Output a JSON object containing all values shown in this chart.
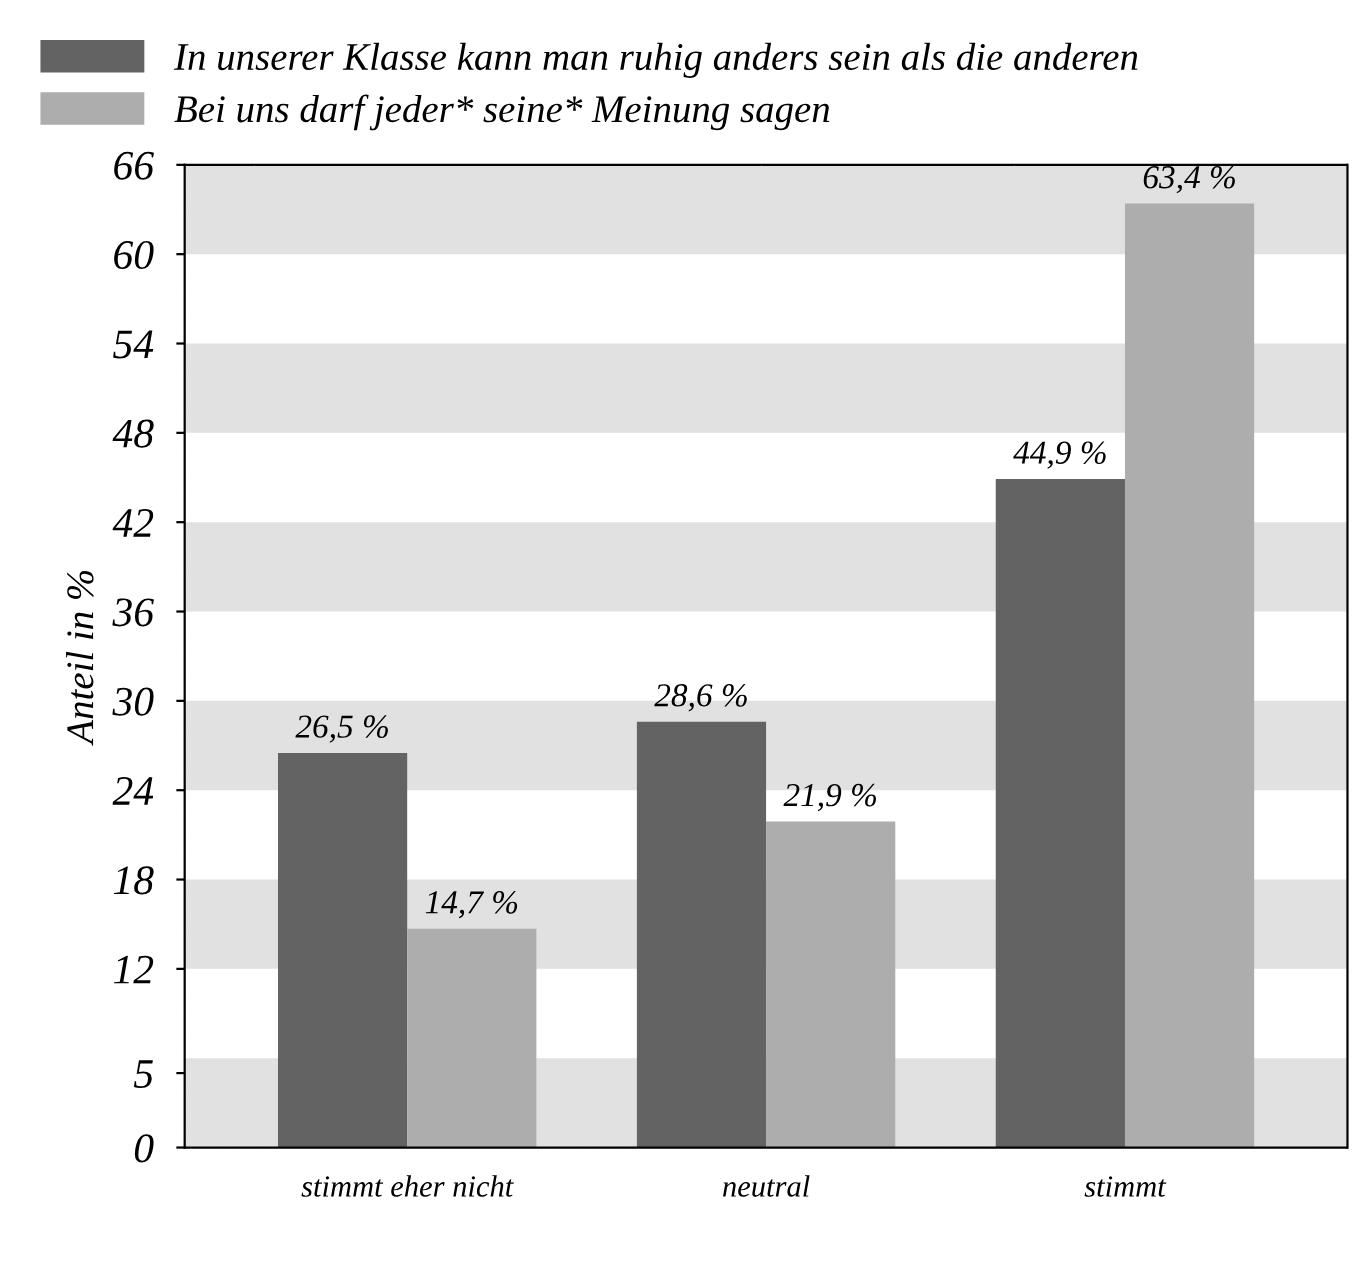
{
  "chart_data": {
    "type": "bar",
    "ylabel": "Anteil in %",
    "categories": [
      "stimmt eher nicht",
      "neutral",
      "stimmt"
    ],
    "series": [
      {
        "name": "In unserer Klasse kann man ruhig anders sein als die anderen",
        "color": "#636363",
        "values": [
          26.5,
          28.6,
          44.9
        ],
        "value_labels": [
          "26,5 %",
          "28,6 %",
          "44,9 %"
        ]
      },
      {
        "name": "Bei uns darf jeder* seine* Meinung sagen",
        "color": "#adadad",
        "values": [
          14.7,
          21.9,
          63.4
        ],
        "value_labels": [
          "14,7 %",
          "21,9 %",
          "63,4 %"
        ]
      }
    ],
    "ylim": [
      0,
      66
    ],
    "yticks": [
      0,
      5,
      12,
      18,
      24,
      30,
      36,
      42,
      48,
      54,
      60,
      66
    ],
    "bands": [
      {
        "axis": "y",
        "from": 0,
        "to": 6,
        "color": "#e1e1e1"
      },
      {
        "axis": "y",
        "from": 12,
        "to": 18,
        "color": "#e1e1e1"
      },
      {
        "axis": "y",
        "from": 24,
        "to": 30,
        "color": "#e1e1e1"
      },
      {
        "axis": "y",
        "from": 36,
        "to": 42,
        "color": "#e1e1e1"
      },
      {
        "axis": "y",
        "from": 48,
        "to": 54,
        "color": "#e1e1e1"
      },
      {
        "axis": "y",
        "from": 60,
        "to": 66,
        "color": "#e1e1e1"
      }
    ],
    "legend": "top left"
  }
}
